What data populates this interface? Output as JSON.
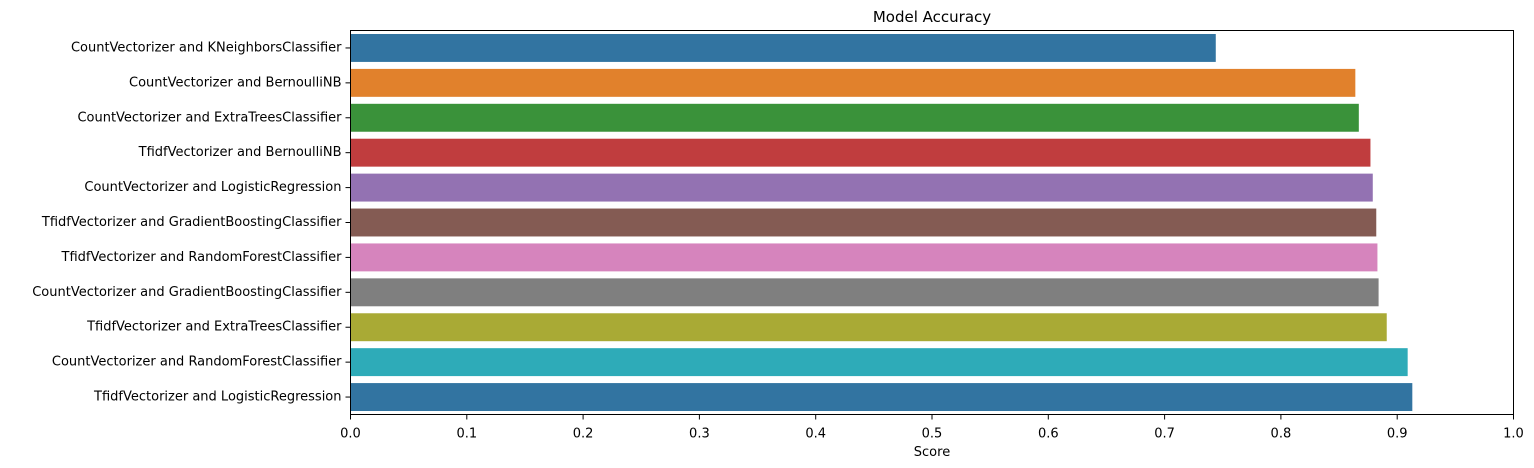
{
  "chart_data": {
    "type": "bar",
    "orientation": "horizontal",
    "title": "Model Accuracy",
    "xlabel": "Score",
    "ylabel": "",
    "xlim": [
      0,
      1.0
    ],
    "xticks": [
      "0.0",
      "0.1",
      "0.2",
      "0.3",
      "0.4",
      "0.5",
      "0.6",
      "0.7",
      "0.8",
      "0.9",
      "1.0"
    ],
    "grid": false,
    "legend": "none",
    "categories": [
      "CountVectorizer and KNeighborsClassifier",
      "CountVectorizer and BernoulliNB",
      "CountVectorizer and ExtraTreesClassifier",
      "TfidfVectorizer and BernoulliNB",
      "CountVectorizer and LogisticRegression",
      "TfidfVectorizer and GradientBoostingClassifier",
      "TfidfVectorizer and RandomForestClassifier",
      "CountVectorizer and GradientBoostingClassifier",
      "TfidfVectorizer and ExtraTreesClassifier",
      "CountVectorizer and RandomForestClassifier",
      "TfidfVectorizer and LogisticRegression"
    ],
    "values": [
      0.744,
      0.864,
      0.867,
      0.877,
      0.879,
      0.882,
      0.883,
      0.884,
      0.891,
      0.909,
      0.913
    ],
    "colors": [
      "#3274a1",
      "#e1812c",
      "#3a923a",
      "#c03d3e",
      "#9372b2",
      "#845b53",
      "#d684bd",
      "#7f7f7f",
      "#a9aa35",
      "#2eabb8",
      "#3274a1"
    ]
  }
}
